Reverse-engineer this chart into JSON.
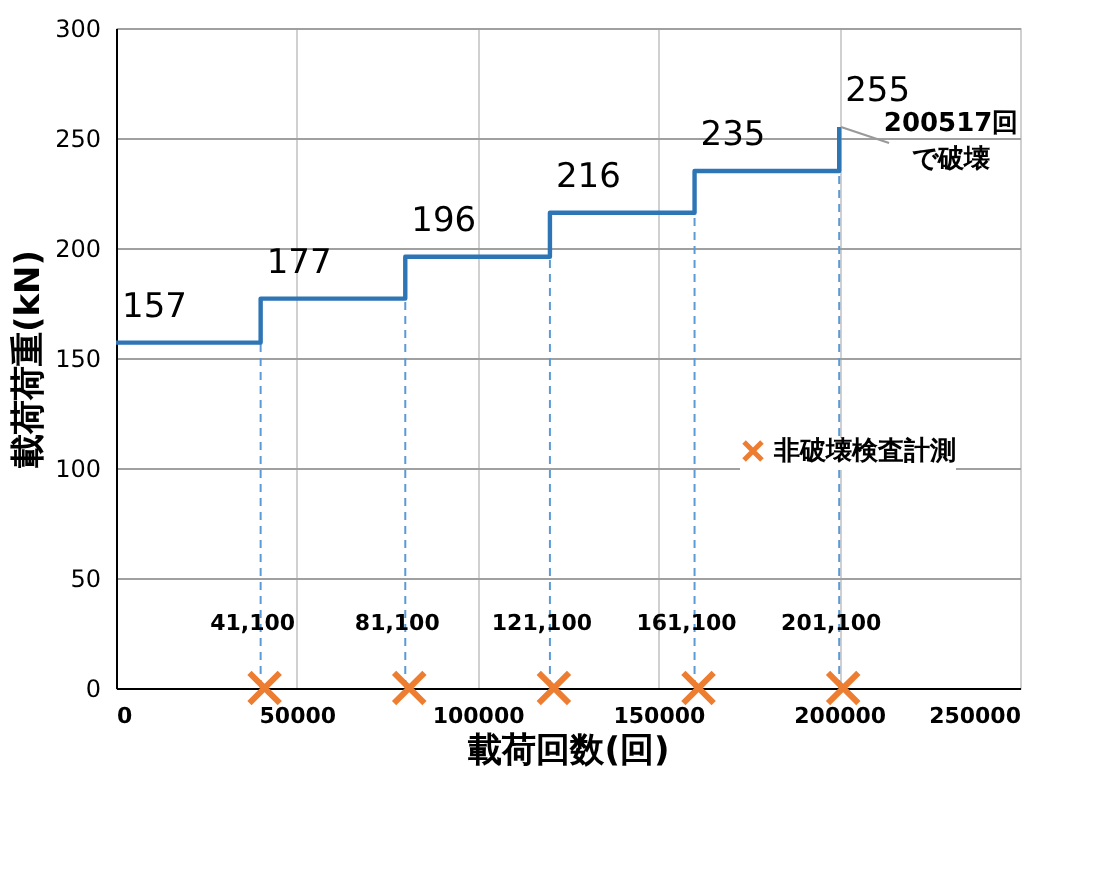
{
  "chart_data": {
    "type": "step",
    "xlabel": "載荷回数(回)",
    "ylabel": "載荷荷重(kN)",
    "xlim": [
      0,
      250000
    ],
    "xticks": [
      0,
      50000,
      100000,
      150000,
      200000,
      250000
    ],
    "ylim": [
      0,
      300
    ],
    "yticks": [
      0,
      50,
      100,
      150,
      200,
      250,
      300
    ],
    "grid": true,
    "legend": "bottom right",
    "series": [
      {
        "color": "#2e75b6",
        "x": [
          0,
          40000,
          80000,
          120000,
          160000,
          200000
        ],
        "values": [
          157,
          177,
          196,
          216,
          235,
          255
        ],
        "value_labels": [
          "157",
          "177",
          "196",
          "216",
          "235",
          "255"
        ]
      },
      {
        "type": "scatter",
        "name": "非破壊検査計測",
        "color": "#ed7d31",
        "marker": "cross",
        "x": [
          41100,
          81100,
          121100,
          161100,
          201100
        ],
        "values": [
          0,
          0,
          0,
          0,
          0
        ]
      }
    ],
    "ref_lines": [
      {
        "axis": "x",
        "value": 40000,
        "color": "#5b9bd5",
        "line_style": "dashed"
      },
      {
        "axis": "x",
        "value": 80000,
        "color": "#5b9bd5",
        "line_style": "dashed"
      },
      {
        "axis": "x",
        "value": 120000,
        "color": "#5b9bd5",
        "line_style": "dashed"
      },
      {
        "axis": "x",
        "value": 160000,
        "color": "#5b9bd5",
        "line_style": "dashed"
      },
      {
        "axis": "x",
        "value": 200000,
        "color": "#5b9bd5",
        "line_style": "dashed"
      }
    ],
    "annotations": [
      {
        "text": "41,100",
        "x": 41100,
        "y": 0
      },
      {
        "text": "81,100",
        "x": 81100,
        "y": 0
      },
      {
        "text": "121,100",
        "x": 121100,
        "y": 0
      },
      {
        "text": "161,100",
        "x": 161100,
        "y": 0
      },
      {
        "text": "201,100",
        "x": 201100,
        "y": 0
      },
      {
        "text": "200517回",
        "x": 200517,
        "y": 255
      },
      {
        "text": "で破壊",
        "x": 200517,
        "y": 255
      }
    ]
  }
}
